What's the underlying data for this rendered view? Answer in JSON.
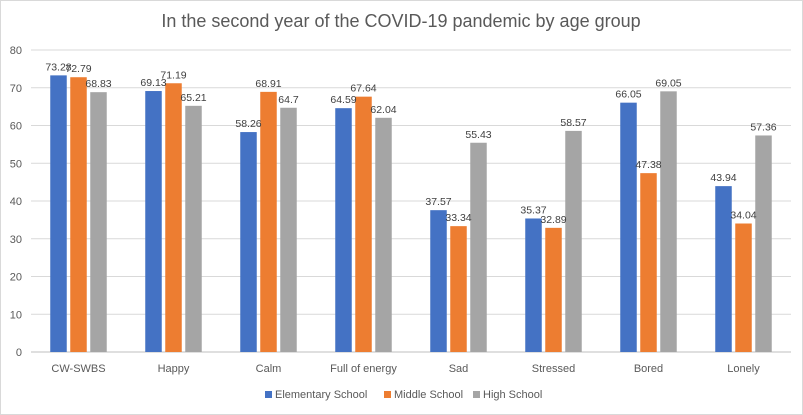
{
  "chart_data": {
    "type": "bar",
    "title": "In the second year of the COVID-19 pandemic by age group",
    "xlabel": "",
    "ylabel": "",
    "ylim": [
      0,
      80
    ],
    "yticks": [
      0,
      10,
      20,
      30,
      40,
      50,
      60,
      70,
      80
    ],
    "grid": true,
    "legend_position": "bottom",
    "categories": [
      "CW-SWBS",
      "Happy",
      "Calm",
      "Full of energy",
      "Sad",
      "Stressed",
      "Bored",
      "Lonely"
    ],
    "series": [
      {
        "name": "Elementary School",
        "color": "#4472c4",
        "values": [
          73.28,
          69.13,
          58.26,
          64.59,
          37.57,
          35.37,
          66.05,
          43.94
        ]
      },
      {
        "name": "Middle School",
        "color": "#ed7d31",
        "values": [
          72.79,
          71.19,
          68.91,
          67.64,
          33.34,
          32.89,
          47.38,
          34.04
        ]
      },
      {
        "name": "High School",
        "color": "#a5a5a5",
        "values": [
          68.83,
          65.21,
          64.7,
          62.04,
          55.43,
          58.57,
          69.05,
          57.36
        ]
      }
    ]
  }
}
